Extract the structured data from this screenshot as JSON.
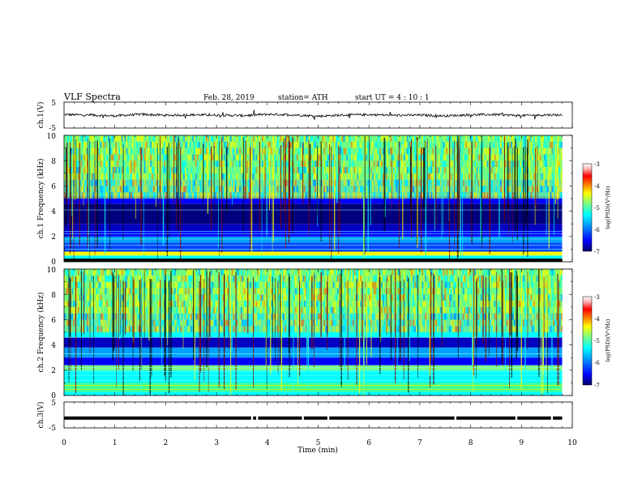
{
  "header": {
    "title": "VLF  Spectra",
    "date": "Feb. 28, 2019",
    "station": "station= ATH",
    "start_ut": "start  UT  =   4  : 10 : 1"
  },
  "colors": {
    "background": "#ffffff",
    "axis": "#000000",
    "spectrogram_scale": [
      "#00007f",
      "#0000ff",
      "#00a0ff",
      "#00ffff",
      "#7fff7f",
      "#ffff00",
      "#ff8000",
      "#ff0000",
      "#7f0000",
      "#ffffff"
    ]
  },
  "chart_data": [
    {
      "name": "ch1-waveform",
      "type": "line",
      "ylabel": "ch.1(V)",
      "ylim": [
        -5,
        5
      ],
      "y_ticks": [
        "5",
        "-5"
      ],
      "xlim": [
        0,
        10
      ],
      "x": [
        0,
        0.5,
        1,
        1.5,
        2,
        2.5,
        3,
        3.5,
        4,
        4.5,
        5,
        5.5,
        6,
        6.5,
        7,
        7.5,
        8,
        8.5,
        9,
        9.5,
        9.8
      ],
      "y": [
        0.2,
        0.0,
        -0.3,
        0.3,
        -0.1,
        0.1,
        0.0,
        -0.2,
        0.3,
        0.1,
        -0.4,
        0.0,
        0.2,
        -0.1,
        0.0,
        -0.3,
        0.1,
        0.2,
        -0.2,
        0.1,
        0.0
      ],
      "color": "#000000"
    },
    {
      "name": "ch1-spectrogram",
      "type": "heatmap",
      "ylabel": "ch.1 Frequency (kHz)",
      "ylim": [
        0,
        10
      ],
      "y_ticks": [
        "0",
        "2",
        "4",
        "6",
        "8",
        "10"
      ],
      "xlim": [
        0,
        10
      ],
      "data_end_x": 9.8,
      "colorbar": {
        "label": "log(PSD)(V²/Hz)",
        "range": [
          -7,
          -3
        ],
        "ticks": [
          "-3",
          "-4",
          "-5",
          "-6",
          "-7"
        ]
      }
    },
    {
      "name": "ch2-spectrogram",
      "type": "heatmap",
      "ylabel": "ch.2 Frequency (kHz)",
      "ylim": [
        0,
        10
      ],
      "y_ticks": [
        "0",
        "2",
        "4",
        "6",
        "8",
        "10"
      ],
      "xlim": [
        0,
        10
      ],
      "data_end_x": 9.8,
      "colorbar": {
        "label": "log(PSD)(V²/Hz)",
        "range": [
          -7,
          -3
        ],
        "ticks": [
          "-3",
          "-4",
          "-5",
          "-6",
          "-7"
        ]
      }
    },
    {
      "name": "ch3-waveform",
      "type": "line",
      "ylabel": "ch.3(V)",
      "ylim": [
        -5,
        5
      ],
      "y_ticks": [
        "5",
        "-5"
      ],
      "xlim": [
        0,
        10
      ],
      "level": -1.2,
      "gaps_x": [
        3.7,
        3.8,
        4.7,
        5.2,
        7.7,
        8.9,
        9.6
      ],
      "xlabel": "Time  (min)",
      "x_ticks": [
        "0",
        "1",
        "2",
        "3",
        "4",
        "5",
        "6",
        "7",
        "8",
        "9",
        "10"
      ]
    }
  ]
}
